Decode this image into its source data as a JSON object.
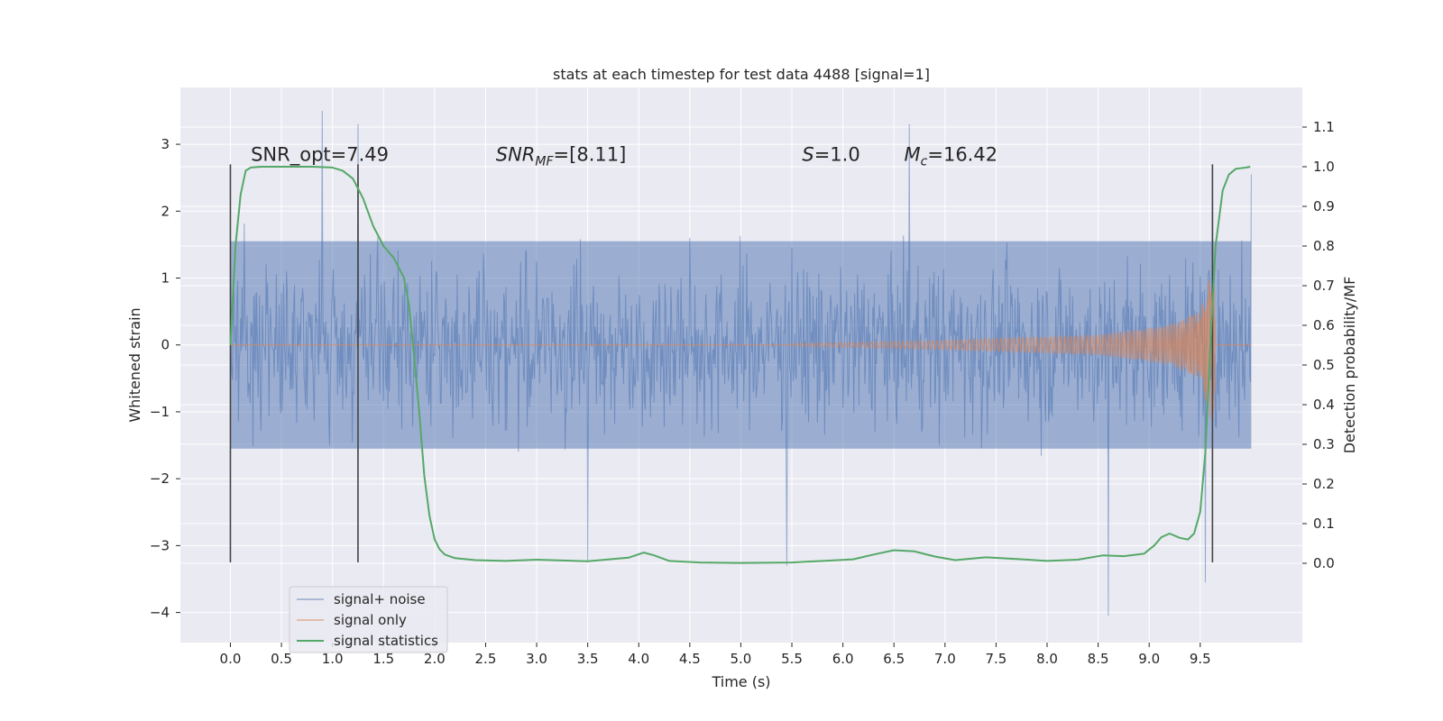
{
  "chart_data": {
    "type": "line",
    "title": "stats at each timestep for test data 4488 [signal=1]",
    "xlabel": "Time (s)",
    "ylabel": "Whitened strain",
    "y2label": "Detection probability/MF",
    "xlim": [
      -0.49,
      10.5
    ],
    "ylim": [
      -4.45,
      3.85
    ],
    "y2lim": [
      -0.2,
      1.2
    ],
    "grid": true,
    "legend_position": "lower-left",
    "xticks": [
      0.0,
      0.5,
      1.0,
      1.5,
      2.0,
      2.5,
      3.0,
      3.5,
      4.0,
      4.5,
      5.0,
      5.5,
      6.0,
      6.5,
      7.0,
      7.5,
      8.0,
      8.5,
      9.0,
      9.5
    ],
    "xtick_labels": [
      "0.0",
      "0.5",
      "1.0",
      "1.5",
      "2.0",
      "2.5",
      "3.0",
      "3.5",
      "4.0",
      "4.5",
      "5.0",
      "5.5",
      "6.0",
      "6.5",
      "7.0",
      "7.5",
      "8.0",
      "8.5",
      "9.0",
      "9.5"
    ],
    "yticks": [
      -4,
      -3,
      -2,
      -1,
      0,
      1,
      2,
      3
    ],
    "ytick_labels": [
      "−4",
      "−3",
      "−2",
      "−1",
      "0",
      "1",
      "2",
      "3"
    ],
    "y2ticks": [
      0.0,
      0.1,
      0.2,
      0.3,
      0.4,
      0.5,
      0.6,
      0.7,
      0.8,
      0.9,
      1.0,
      1.1
    ],
    "y2tick_labels": [
      "0.0",
      "0.1",
      "0.2",
      "0.3",
      "0.4",
      "0.5",
      "0.6",
      "0.7",
      "0.8",
      "0.9",
      "1.0",
      "1.1"
    ],
    "annotations": [
      {
        "text": "SNR_opt=7.49",
        "x": 0.2,
        "y": 2.75
      },
      {
        "text": "SNR_MF=[8.11]",
        "x": 2.6,
        "y": 2.75
      },
      {
        "text": "S=1.0",
        "x": 5.6,
        "y": 2.75
      },
      {
        "text": "M_c=16.42",
        "x": 6.6,
        "y": 2.75
      }
    ],
    "vertical_markers": [
      {
        "x": 0.0,
        "y_range": [
          -3.25,
          2.7
        ]
      },
      {
        "x": 1.25,
        "y_range": [
          -3.25,
          2.7
        ]
      },
      {
        "x": 9.62,
        "y_range": [
          -3.25,
          2.7
        ]
      }
    ],
    "series": [
      {
        "name": "signal+ noise",
        "axis": "left",
        "color": "#4c72b0",
        "description_stats": {
          "x_range": [
            0.0,
            10.0
          ],
          "typical_range": [
            -1.6,
            1.6
          ],
          "max": 3.5,
          "min": -4.05
        },
        "x": [
          0.0,
          0.9,
          1.25,
          3.5,
          5.45,
          6.65,
          8.6,
          9.55,
          9.62,
          10.0
        ],
        "y": [
          1.2,
          3.5,
          3.3,
          -3.25,
          -3.3,
          3.3,
          -4.05,
          -3.55,
          2.7,
          2.55
        ]
      },
      {
        "name": "signal only",
        "axis": "left",
        "color": "#dd8452",
        "description_stats": {
          "chirp_start": 5.5,
          "merger_time": 9.65,
          "peak_amplitude": 1.25
        },
        "x": [
          0.0,
          5.5,
          7.0,
          8.5,
          9.2,
          9.5,
          9.62,
          9.68,
          10.0
        ],
        "y": [
          0.0,
          0.02,
          0.07,
          0.15,
          0.3,
          0.5,
          1.25,
          0.0,
          0.0
        ]
      },
      {
        "name": "signal statistics",
        "axis": "right",
        "color": "#55a868",
        "x": [
          0.0,
          0.05,
          0.1,
          0.15,
          0.2,
          0.3,
          0.5,
          0.8,
          1.0,
          1.1,
          1.2,
          1.3,
          1.4,
          1.5,
          1.6,
          1.7,
          1.75,
          1.8,
          1.85,
          1.9,
          1.95,
          2.0,
          2.05,
          2.1,
          2.2,
          2.4,
          2.7,
          3.0,
          3.5,
          3.9,
          4.05,
          4.15,
          4.3,
          4.6,
          5.0,
          5.5,
          5.8,
          6.1,
          6.3,
          6.5,
          6.7,
          6.9,
          7.1,
          7.4,
          7.7,
          8.0,
          8.3,
          8.55,
          8.75,
          8.95,
          9.05,
          9.12,
          9.2,
          9.3,
          9.38,
          9.44,
          9.5,
          9.55,
          9.6,
          9.65,
          9.72,
          9.78,
          9.85,
          9.95,
          9.99
        ],
        "y": [
          0.55,
          0.8,
          0.93,
          0.99,
          0.998,
          1.0,
          1.0,
          1.0,
          0.998,
          0.99,
          0.97,
          0.92,
          0.85,
          0.8,
          0.77,
          0.72,
          0.65,
          0.52,
          0.38,
          0.22,
          0.12,
          0.06,
          0.035,
          0.022,
          0.013,
          0.008,
          0.006,
          0.009,
          0.005,
          0.014,
          0.027,
          0.02,
          0.006,
          0.002,
          0.001,
          0.002,
          0.006,
          0.01,
          0.022,
          0.033,
          0.03,
          0.017,
          0.008,
          0.015,
          0.011,
          0.006,
          0.009,
          0.02,
          0.018,
          0.024,
          0.045,
          0.066,
          0.075,
          0.064,
          0.06,
          0.075,
          0.13,
          0.28,
          0.55,
          0.8,
          0.94,
          0.98,
          0.995,
          0.998,
          1.0
        ]
      }
    ]
  }
}
